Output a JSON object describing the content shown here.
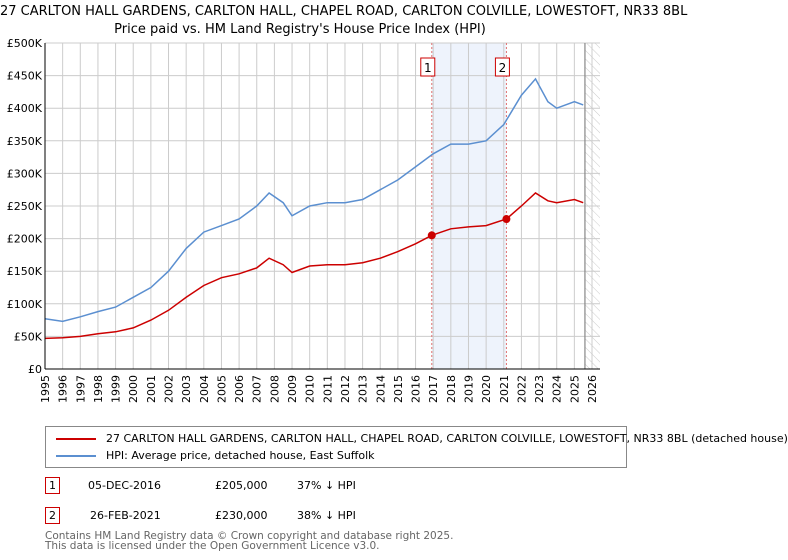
{
  "title": "27 CARLTON HALL GARDENS, CARLTON HALL, CHAPEL ROAD, CARLTON COLVILLE, LOWESTOFT, NR33 8BL",
  "subtitle": "Price paid vs. HM Land Registry's House Price Index (HPI)",
  "chart_data": {
    "type": "line",
    "xlim": [
      1995,
      2026
    ],
    "ylim": [
      0,
      500000
    ],
    "x_ticks": [
      "1995",
      "1996",
      "1997",
      "1998",
      "1999",
      "2000",
      "2001",
      "2002",
      "2003",
      "2004",
      "2005",
      "2006",
      "2007",
      "2008",
      "2009",
      "2010",
      "2011",
      "2012",
      "2013",
      "2014",
      "2015",
      "2016",
      "2017",
      "2018",
      "2019",
      "2020",
      "2021",
      "2022",
      "2023",
      "2024",
      "2025",
      "2026"
    ],
    "y_ticks": [
      {
        "v": 0,
        "label": "£0"
      },
      {
        "v": 50000,
        "label": "£50K"
      },
      {
        "v": 100000,
        "label": "£100K"
      },
      {
        "v": 150000,
        "label": "£150K"
      },
      {
        "v": 200000,
        "label": "£200K"
      },
      {
        "v": 250000,
        "label": "£250K"
      },
      {
        "v": 300000,
        "label": "£300K"
      },
      {
        "v": 350000,
        "label": "£350K"
      },
      {
        "v": 400000,
        "label": "£400K"
      },
      {
        "v": 450000,
        "label": "£450K"
      },
      {
        "v": 500000,
        "label": "£500K"
      }
    ],
    "grid": true,
    "series": [
      {
        "name": "27 CARLTON HALL GARDENS, CARLTON HALL, CHAPEL ROAD, CARLTON COLVILLE, LOWESTOFT, NR33 8BL (detached house)",
        "color": "#cc0000",
        "x": [
          1995,
          1996,
          1997,
          1998,
          1999,
          2000,
          2001,
          2002,
          2003,
          2004,
          2005,
          2006,
          2007,
          2007.7,
          2008.5,
          2009,
          2010,
          2011,
          2012,
          2013,
          2014,
          2015,
          2016,
          2016.92,
          2018,
          2019,
          2020,
          2021.15,
          2022,
          2022.8,
          2023.5,
          2024,
          2025,
          2025.5
        ],
        "y": [
          47000,
          48000,
          50000,
          54000,
          57000,
          63000,
          75000,
          90000,
          110000,
          128000,
          140000,
          146000,
          155000,
          170000,
          160000,
          148000,
          158000,
          160000,
          160000,
          163000,
          170000,
          180000,
          192000,
          205000,
          215000,
          218000,
          220000,
          230000,
          250000,
          270000,
          258000,
          255000,
          260000,
          255000
        ]
      },
      {
        "name": "HPI: Average price, detached house, East Suffolk",
        "color": "#5b8fd0",
        "x": [
          1995,
          1996,
          1997,
          1998,
          1999,
          2000,
          2001,
          2002,
          2003,
          2004,
          2005,
          2006,
          2007,
          2007.7,
          2008.5,
          2009,
          2010,
          2011,
          2012,
          2013,
          2014,
          2015,
          2016,
          2017,
          2018,
          2019,
          2020,
          2021,
          2022,
          2022.8,
          2023.5,
          2024,
          2025,
          2025.5
        ],
        "y": [
          77000,
          73000,
          80000,
          88000,
          95000,
          110000,
          125000,
          150000,
          185000,
          210000,
          220000,
          230000,
          250000,
          270000,
          255000,
          235000,
          250000,
          255000,
          255000,
          260000,
          275000,
          290000,
          310000,
          330000,
          345000,
          345000,
          350000,
          375000,
          420000,
          445000,
          410000,
          400000,
          410000,
          405000
        ]
      }
    ],
    "annotations": [
      {
        "label": "1",
        "x": 2016.92
      },
      {
        "label": "2",
        "x": 2021.15
      }
    ],
    "shaded_range": [
      2016.92,
      2021.15
    ],
    "forecast_start": 2025.6
  },
  "legend": {
    "red": "27 CARLTON HALL GARDENS, CARLTON HALL, CHAPEL ROAD, CARLTON COLVILLE, LOWESTOFT, NR33 8BL (detached house)",
    "blue": "HPI: Average price, detached house, East Suffolk"
  },
  "transactions": [
    {
      "n": "1",
      "date": "05-DEC-2016",
      "price": "£205,000",
      "hpi": "37% ↓ HPI"
    },
    {
      "n": "2",
      "date": "26-FEB-2021",
      "price": "£230,000",
      "hpi": "38% ↓ HPI"
    }
  ],
  "footer": {
    "line1": "Contains HM Land Registry data © Crown copyright and database right 2025.",
    "line2": "This data is licensed under the Open Government Licence v3.0."
  }
}
